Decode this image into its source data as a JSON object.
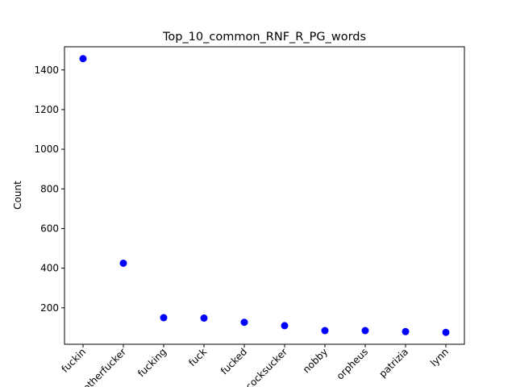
{
  "chart_data": {
    "type": "scatter",
    "title": "Top_10_common_RNF_R_PG_words",
    "xlabel": "",
    "ylabel": "Count",
    "categories": [
      "fuckin",
      "motherfucker",
      "fucking",
      "fuck",
      "fucked",
      "cocksucker",
      "nobby",
      "orpheus",
      "patrizia",
      "lynn"
    ],
    "values": [
      1457,
      425,
      150,
      148,
      127,
      110,
      85,
      85,
      80,
      76
    ],
    "ylim": [
      16,
      1517
    ],
    "yticks": [
      200,
      400,
      600,
      800,
      1000,
      1200,
      1400
    ],
    "ytick_labels": [
      "200",
      "400",
      "600",
      "800",
      "1000",
      "1200",
      "1400"
    ],
    "point_color": "#0000ff",
    "grid": false,
    "legend": "none"
  }
}
